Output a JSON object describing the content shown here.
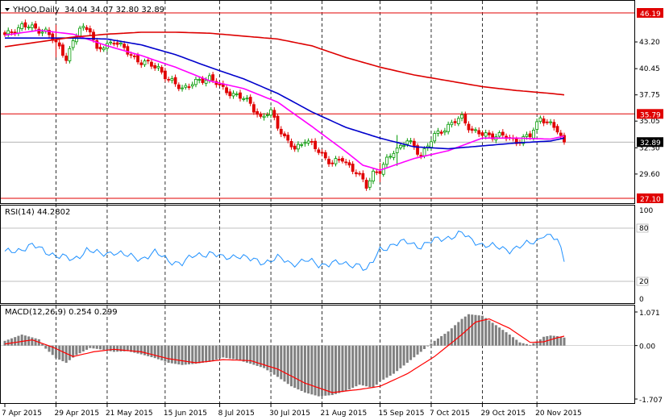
{
  "chart_data": [
    {
      "type": "candlestick",
      "symbol": "YHOO",
      "timeframe": "Daily",
      "title": "YHOO,Daily",
      "ohlc_readout": "34.04 34.07 32.80 32.89",
      "ylim": [
        27.1,
        46.19
      ],
      "y_ticks": [
        "46.19",
        "43.20",
        "40.45",
        "37.75",
        "35.05",
        "32.30",
        "29.60",
        "27.10"
      ],
      "price_tag": "32.89",
      "level_tags": [
        "46.19",
        "35.79",
        "27.10"
      ],
      "x_tick_labels": [
        "7 Apr 2015",
        "29 Apr 2015",
        "21 May 2015",
        "15 Jun 2015",
        "8 Jul 2015",
        "30 Jul 2015",
        "21 Aug 2015",
        "15 Sep 2015",
        "7 Oct 2015",
        "29 Oct 2015",
        "20 Nov 2015"
      ],
      "close_anchors": [
        [
          0,
          43.8
        ],
        [
          5,
          44.9
        ],
        [
          12,
          44.3
        ],
        [
          16,
          42.6
        ],
        [
          18,
          41.6
        ],
        [
          22,
          44.6
        ],
        [
          25,
          44.6
        ],
        [
          27,
          42.2
        ],
        [
          32,
          43.4
        ],
        [
          36,
          42.1
        ],
        [
          40,
          41.1
        ],
        [
          45,
          40.6
        ],
        [
          48,
          39.2
        ],
        [
          52,
          38.5
        ],
        [
          56,
          39.0
        ],
        [
          60,
          39.6
        ],
        [
          64,
          38.3
        ],
        [
          68,
          37.7
        ],
        [
          72,
          36.9
        ],
        [
          75,
          35.3
        ],
        [
          78,
          36.0
        ],
        [
          82,
          33.3
        ],
        [
          85,
          32.1
        ],
        [
          88,
          33.2
        ],
        [
          92,
          31.9
        ],
        [
          96,
          30.7
        ],
        [
          99,
          31.1
        ],
        [
          103,
          29.8
        ],
        [
          106,
          28.3
        ],
        [
          108,
          29.8
        ],
        [
          110,
          29.9
        ],
        [
          114,
          32.0
        ],
        [
          118,
          33.0
        ],
        [
          122,
          31.6
        ],
        [
          126,
          33.5
        ],
        [
          130,
          34.6
        ],
        [
          134,
          35.4
        ],
        [
          137,
          34.1
        ],
        [
          140,
          33.6
        ],
        [
          145,
          33.6
        ],
        [
          150,
          33.0
        ],
        [
          154,
          33.5
        ],
        [
          157,
          35.5
        ],
        [
          160,
          34.6
        ],
        [
          162,
          34.1
        ],
        [
          164,
          32.89
        ]
      ],
      "range_anchors": [
        [
          15,
          3.2
        ],
        [
          110,
          1.8
        ],
        [
          115,
          2.7
        ]
      ],
      "series": [
        {
          "type": "sma",
          "color": "#ff00ff",
          "points": [
            [
              0,
              43.9
            ],
            [
              10,
              44.4
            ],
            [
              20,
              44.0
            ],
            [
              30,
              42.8
            ],
            [
              40,
              41.8
            ],
            [
              50,
              40.6
            ],
            [
              60,
              39.2
            ],
            [
              70,
              38.4
            ],
            [
              80,
              37.0
            ],
            [
              90,
              34.5
            ],
            [
              100,
              31.9
            ],
            [
              105,
              30.5
            ],
            [
              110,
              30.0
            ],
            [
              120,
              31.2
            ],
            [
              130,
              32.0
            ],
            [
              140,
              33.3
            ],
            [
              150,
              33.3
            ],
            [
              160,
              33.2
            ],
            [
              164,
              33.5
            ]
          ]
        },
        {
          "type": "sma",
          "color": "#0000cc",
          "points": [
            [
              0,
              43.6
            ],
            [
              10,
              43.6
            ],
            [
              20,
              43.6
            ],
            [
              30,
              43.5
            ],
            [
              40,
              42.9
            ],
            [
              50,
              41.9
            ],
            [
              60,
              40.6
            ],
            [
              70,
              39.4
            ],
            [
              80,
              37.9
            ],
            [
              90,
              36.0
            ],
            [
              100,
              34.4
            ],
            [
              110,
              33.3
            ],
            [
              120,
              32.4
            ],
            [
              130,
              32.2
            ],
            [
              140,
              32.5
            ],
            [
              150,
              32.8
            ],
            [
              160,
              33.0
            ],
            [
              164,
              33.3
            ]
          ]
        },
        {
          "type": "sma",
          "color": "#dd0000",
          "points": [
            [
              0,
              42.7
            ],
            [
              10,
              43.2
            ],
            [
              20,
              43.7
            ],
            [
              30,
              44.0
            ],
            [
              40,
              44.2
            ],
            [
              50,
              44.2
            ],
            [
              60,
              44.1
            ],
            [
              70,
              43.8
            ],
            [
              80,
              43.5
            ],
            [
              90,
              42.8
            ],
            [
              100,
              41.6
            ],
            [
              110,
              40.6
            ],
            [
              120,
              39.8
            ],
            [
              130,
              39.2
            ],
            [
              140,
              38.6
            ],
            [
              150,
              38.2
            ],
            [
              160,
              37.9
            ],
            [
              164,
              37.75
            ]
          ]
        }
      ]
    },
    {
      "type": "line",
      "title": "RSI(14) 44.2802",
      "ylim": [
        0,
        100
      ],
      "levels": [
        20,
        80
      ],
      "y_ticks": [
        "100",
        "80",
        "20",
        "0"
      ],
      "series": [
        {
          "color": "#1e90ff",
          "points": [
            [
              0,
              52
            ],
            [
              8,
              60
            ],
            [
              16,
              48
            ],
            [
              20,
              44
            ],
            [
              24,
              56
            ],
            [
              28,
              50
            ],
            [
              32,
              54
            ],
            [
              36,
              48
            ],
            [
              40,
              46
            ],
            [
              44,
              52
            ],
            [
              48,
              44
            ],
            [
              52,
              40
            ],
            [
              56,
              50
            ],
            [
              60,
              52
            ],
            [
              64,
              46
            ],
            [
              68,
              50
            ],
            [
              72,
              44
            ],
            [
              76,
              42
            ],
            [
              80,
              46
            ],
            [
              84,
              40
            ],
            [
              88,
              44
            ],
            [
              92,
              38
            ],
            [
              96,
              42
            ],
            [
              100,
              38
            ],
            [
              104,
              40
            ],
            [
              106,
              32
            ],
            [
              108,
              42
            ],
            [
              110,
              56
            ],
            [
              114,
              62
            ],
            [
              118,
              64
            ],
            [
              122,
              60
            ],
            [
              126,
              66
            ],
            [
              130,
              70
            ],
            [
              134,
              74
            ],
            [
              136,
              68
            ],
            [
              140,
              62
            ],
            [
              144,
              58
            ],
            [
              148,
              56
            ],
            [
              152,
              60
            ],
            [
              156,
              66
            ],
            [
              158,
              74
            ],
            [
              160,
              70
            ],
            [
              162,
              66
            ],
            [
              164,
              44
            ]
          ]
        }
      ]
    },
    {
      "type": "bar",
      "title": "MACD(12,26,9) 0.254 0.299",
      "ylim": [
        -1.707,
        1.071
      ],
      "y_ticks": [
        "1.071",
        "0.00",
        "-1.707"
      ],
      "series": [
        {
          "name": "histogram",
          "color": "#808080",
          "points": [
            [
              0,
              0.15
            ],
            [
              5,
              0.35
            ],
            [
              10,
              0.2
            ],
            [
              12,
              -0.1
            ],
            [
              15,
              -0.4
            ],
            [
              18,
              -0.55
            ],
            [
              21,
              -0.3
            ],
            [
              25,
              -0.08
            ],
            [
              28,
              -0.12
            ],
            [
              32,
              -0.2
            ],
            [
              36,
              -0.18
            ],
            [
              40,
              -0.28
            ],
            [
              44,
              -0.4
            ],
            [
              48,
              -0.55
            ],
            [
              52,
              -0.62
            ],
            [
              56,
              -0.58
            ],
            [
              60,
              -0.52
            ],
            [
              64,
              -0.38
            ],
            [
              68,
              -0.45
            ],
            [
              72,
              -0.58
            ],
            [
              76,
              -0.72
            ],
            [
              80,
              -1.0
            ],
            [
              84,
              -1.3
            ],
            [
              88,
              -1.5
            ],
            [
              92,
              -1.62
            ],
            [
              96,
              -1.58
            ],
            [
              100,
              -1.45
            ],
            [
              104,
              -1.25
            ],
            [
              108,
              -1.35
            ],
            [
              110,
              -1.15
            ],
            [
              114,
              -0.9
            ],
            [
              118,
              -0.55
            ],
            [
              122,
              -0.2
            ],
            [
              126,
              0.15
            ],
            [
              130,
              0.45
            ],
            [
              134,
              0.85
            ],
            [
              136,
              1.0
            ],
            [
              140,
              0.95
            ],
            [
              144,
              0.65
            ],
            [
              148,
              0.35
            ],
            [
              151,
              0.1
            ],
            [
              154,
              0.02
            ],
            [
              156,
              0.12
            ],
            [
              158,
              0.28
            ],
            [
              160,
              0.32
            ],
            [
              162,
              0.3
            ],
            [
              164,
              0.254
            ]
          ]
        },
        {
          "name": "signal",
          "color": "#ff0000",
          "points": [
            [
              0,
              0.05
            ],
            [
              8,
              0.18
            ],
            [
              14,
              -0.05
            ],
            [
              20,
              -0.35
            ],
            [
              26,
              -0.2
            ],
            [
              32,
              -0.12
            ],
            [
              40,
              -0.2
            ],
            [
              48,
              -0.42
            ],
            [
              56,
              -0.55
            ],
            [
              64,
              -0.45
            ],
            [
              72,
              -0.48
            ],
            [
              80,
              -0.75
            ],
            [
              88,
              -1.2
            ],
            [
              96,
              -1.5
            ],
            [
              104,
              -1.4
            ],
            [
              110,
              -1.3
            ],
            [
              118,
              -0.9
            ],
            [
              126,
              -0.35
            ],
            [
              134,
              0.35
            ],
            [
              138,
              0.75
            ],
            [
              142,
              0.85
            ],
            [
              148,
              0.55
            ],
            [
              154,
              0.1
            ],
            [
              158,
              0.12
            ],
            [
              162,
              0.25
            ],
            [
              164,
              0.299
            ]
          ]
        }
      ]
    }
  ]
}
